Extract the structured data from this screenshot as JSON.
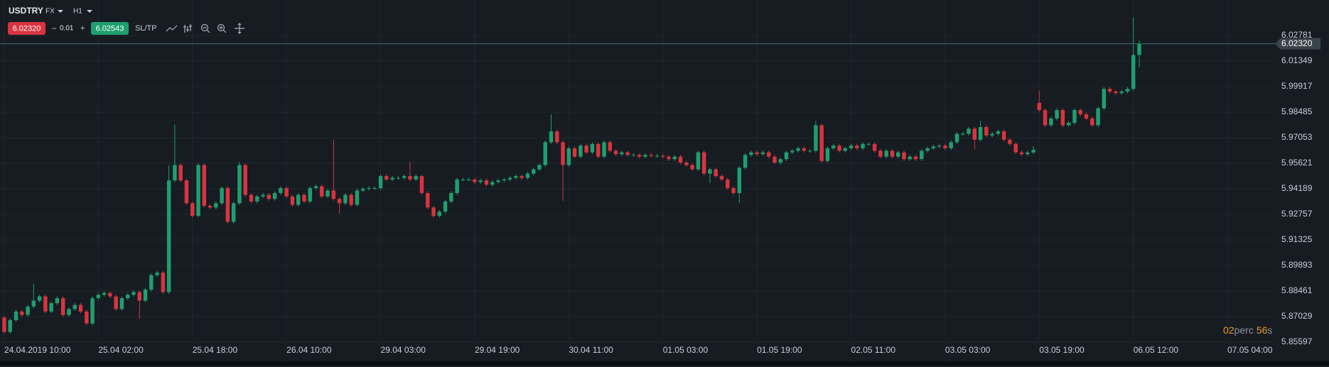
{
  "toolbar": {
    "symbol": "USDTRY",
    "market": "FX",
    "timeframe": "H1",
    "bid": "6.02320",
    "minus": "–",
    "lot": "0.01",
    "plus": "+",
    "ask": "6.02543",
    "sltp": "SL/TP"
  },
  "timer": {
    "minutes": "02",
    "minutes_unit": "perc",
    "seconds": "56",
    "seconds_unit": "s"
  },
  "chart_data": {
    "type": "candlestick",
    "up_color": "#1f9e6f",
    "down_color": "#d8343f",
    "grid": true,
    "current_price": {
      "value": 6.0232,
      "label": "6.02320"
    },
    "ylim": [
      5.846,
      6.0477
    ],
    "xlim": [
      -0.72,
      215.6
    ],
    "yticks": [
      6.02781,
      6.01349,
      5.99917,
      5.98485,
      5.97053,
      5.95621,
      5.94189,
      5.92757,
      5.91325,
      5.89893,
      5.88461,
      5.87029,
      5.85597
    ],
    "xticks": [
      {
        "value": 0,
        "label": "24.04.2019 10:00"
      },
      {
        "value": 16,
        "label": "25.04 02:00"
      },
      {
        "value": 32,
        "label": "25.04 18:00"
      },
      {
        "value": 48,
        "label": "26.04 10:00"
      },
      {
        "value": 64,
        "label": "29.04 03:00"
      },
      {
        "value": 80,
        "label": "29.04 19:00"
      },
      {
        "value": 96,
        "label": "30.04 11:00"
      },
      {
        "value": 112,
        "label": "01.05 03:00"
      },
      {
        "value": 128,
        "label": "01.05 19:00"
      },
      {
        "value": 144,
        "label": "02.05 11:00"
      },
      {
        "value": 160,
        "label": "03.05 03:00"
      },
      {
        "value": 176,
        "label": "03.05 19:00"
      },
      {
        "value": 192,
        "label": "06.05 12:00"
      },
      {
        "value": 208,
        "label": "07.05 04:00"
      }
    ],
    "ohlc": [
      [
        5.8697,
        5.8707,
        5.8607,
        5.8617
      ],
      [
        5.8617,
        5.8693,
        5.8607,
        5.8683
      ],
      [
        5.8683,
        5.8741,
        5.8673,
        5.8731
      ],
      [
        5.8731,
        5.8741,
        5.8702,
        5.8712
      ],
      [
        5.8712,
        5.8769,
        5.8702,
        5.8759
      ],
      [
        5.8759,
        5.8887,
        5.8749,
        5.8792
      ],
      [
        5.8792,
        5.8826,
        5.8782,
        5.8816
      ],
      [
        5.8816,
        5.8826,
        5.8721,
        5.8731
      ],
      [
        5.8731,
        5.8788,
        5.8721,
        5.8778
      ],
      [
        5.8778,
        5.8816,
        5.8768,
        5.8806
      ],
      [
        5.8806,
        5.8816,
        5.8702,
        5.8712
      ],
      [
        5.8712,
        5.8755,
        5.8702,
        5.8745
      ],
      [
        5.8745,
        5.8778,
        5.8735,
        5.8768
      ],
      [
        5.8768,
        5.8778,
        5.8721,
        5.8731
      ],
      [
        5.8731,
        5.8741,
        5.8654,
        5.8664
      ],
      [
        5.8664,
        5.8816,
        5.8654,
        5.8806
      ],
      [
        5.8806,
        5.8835,
        5.8796,
        5.8825
      ],
      [
        5.8825,
        5.8845,
        5.8815,
        5.8835
      ],
      [
        5.8835,
        5.8845,
        5.8806,
        5.8816
      ],
      [
        5.8816,
        5.8826,
        5.8735,
        5.8745
      ],
      [
        5.8745,
        5.8816,
        5.8735,
        5.8806
      ],
      [
        5.8806,
        5.8835,
        5.8796,
        5.8825
      ],
      [
        5.8825,
        5.885,
        5.8815,
        5.884
      ],
      [
        5.884,
        5.885,
        5.869,
        5.8792
      ],
      [
        5.8792,
        5.8864,
        5.8782,
        5.8854
      ],
      [
        5.8854,
        5.8945,
        5.8844,
        5.8935
      ],
      [
        5.8935,
        5.8959,
        5.8925,
        5.8949
      ],
      [
        5.8949,
        5.8959,
        5.883,
        5.884
      ],
      [
        5.884,
        5.9552,
        5.883,
        5.9466
      ],
      [
        5.9466,
        5.9779,
        5.9456,
        5.9552
      ],
      [
        5.9552,
        5.9562,
        5.9456,
        5.9466
      ],
      [
        5.9466,
        5.9476,
        5.9328,
        5.9338
      ],
      [
        5.9338,
        5.9348,
        5.9257,
        5.9267
      ],
      [
        5.9267,
        5.9562,
        5.9257,
        5.9552
      ],
      [
        5.9552,
        5.9562,
        5.9314,
        5.9324
      ],
      [
        5.9324,
        5.9334,
        5.9304,
        5.9314
      ],
      [
        5.9314,
        5.9348,
        5.9304,
        5.9338
      ],
      [
        5.9338,
        5.9433,
        5.9328,
        5.9423
      ],
      [
        5.9423,
        5.9433,
        5.9224,
        5.9234
      ],
      [
        5.9234,
        5.9348,
        5.9224,
        5.9338
      ],
      [
        5.9338,
        5.957,
        5.9328,
        5.9552
      ],
      [
        5.9552,
        5.9562,
        5.9375,
        5.9385
      ],
      [
        5.9385,
        5.9395,
        5.9338,
        5.9348
      ],
      [
        5.9348,
        5.9386,
        5.9338,
        5.9376
      ],
      [
        5.9376,
        5.9395,
        5.9366,
        5.9385
      ],
      [
        5.9385,
        5.9395,
        5.9352,
        5.9362
      ],
      [
        5.9362,
        5.9405,
        5.9352,
        5.9395
      ],
      [
        5.9395,
        5.9433,
        5.9385,
        5.9423
      ],
      [
        5.9423,
        5.9433,
        5.9366,
        5.9376
      ],
      [
        5.9376,
        5.9386,
        5.9319,
        5.9329
      ],
      [
        5.9329,
        5.9395,
        5.9319,
        5.9385
      ],
      [
        5.9385,
        5.9395,
        5.9338,
        5.9348
      ],
      [
        5.9348,
        5.9433,
        5.9338,
        5.9423
      ],
      [
        5.9423,
        5.9443,
        5.9413,
        5.9433
      ],
      [
        5.9433,
        5.9443,
        5.9366,
        5.9376
      ],
      [
        5.9376,
        5.9419,
        5.9366,
        5.9409
      ],
      [
        5.9409,
        5.9694,
        5.9352,
        5.9362
      ],
      [
        5.9362,
        5.9372,
        5.928,
        5.9338
      ],
      [
        5.9338,
        5.9395,
        5.9328,
        5.9385
      ],
      [
        5.9385,
        5.9395,
        5.9319,
        5.9329
      ],
      [
        5.9329,
        5.9419,
        5.9319,
        5.9409
      ],
      [
        5.9409,
        5.9429,
        5.9399,
        5.9419
      ],
      [
        5.9419,
        5.9433,
        5.9409,
        5.9423
      ],
      [
        5.9423,
        5.9433,
        5.9413,
        5.9423
      ],
      [
        5.9423,
        5.95,
        5.9413,
        5.949
      ],
      [
        5.949,
        5.95,
        5.9461,
        5.9471
      ],
      [
        5.9471,
        5.949,
        5.9461,
        5.948
      ],
      [
        5.948,
        5.949,
        5.947,
        5.948
      ],
      [
        5.948,
        5.95,
        5.947,
        5.949
      ],
      [
        5.949,
        5.957,
        5.9461,
        5.9471
      ],
      [
        5.9471,
        5.95,
        5.9461,
        5.949
      ],
      [
        5.949,
        5.95,
        5.9385,
        5.9395
      ],
      [
        5.9395,
        5.9405,
        5.9304,
        5.9314
      ],
      [
        5.9314,
        5.9324,
        5.9257,
        5.9267
      ],
      [
        5.9267,
        5.9301,
        5.9257,
        5.9291
      ],
      [
        5.9291,
        5.9358,
        5.9281,
        5.9348
      ],
      [
        5.9348,
        5.9405,
        5.9338,
        5.9395
      ],
      [
        5.9395,
        5.9481,
        5.9385,
        5.9471
      ],
      [
        5.9471,
        5.9481,
        5.9461,
        5.9471
      ],
      [
        5.9471,
        5.9481,
        5.9461,
        5.9471
      ],
      [
        5.9471,
        5.9481,
        5.9447,
        5.9457
      ],
      [
        5.9457,
        5.9476,
        5.9447,
        5.9466
      ],
      [
        5.9466,
        5.9476,
        5.9432,
        5.9442
      ],
      [
        5.9442,
        5.9467,
        5.9432,
        5.9457
      ],
      [
        5.9457,
        5.9476,
        5.9447,
        5.9466
      ],
      [
        5.9466,
        5.9481,
        5.9456,
        5.9471
      ],
      [
        5.9471,
        5.949,
        5.9461,
        5.948
      ],
      [
        5.948,
        5.95,
        5.947,
        5.949
      ],
      [
        5.949,
        5.95,
        5.947,
        5.948
      ],
      [
        5.948,
        5.9514,
        5.947,
        5.9504
      ],
      [
        5.9504,
        5.9538,
        5.9494,
        5.9528
      ],
      [
        5.9528,
        5.9562,
        5.9518,
        5.9552
      ],
      [
        5.9552,
        5.969,
        5.9542,
        5.968
      ],
      [
        5.968,
        5.9836,
        5.967,
        5.9741
      ],
      [
        5.9741,
        5.9751,
        5.967,
        5.968
      ],
      [
        5.968,
        5.969,
        5.9352,
        5.9552
      ],
      [
        5.9552,
        5.9656,
        5.9542,
        5.9646
      ],
      [
        5.9646,
        5.9656,
        5.9589,
        5.9599
      ],
      [
        5.9599,
        5.9671,
        5.9589,
        5.9661
      ],
      [
        5.9661,
        5.9671,
        5.9613,
        5.9623
      ],
      [
        5.9623,
        5.968,
        5.9613,
        5.967
      ],
      [
        5.967,
        5.968,
        5.9589,
        5.9599
      ],
      [
        5.9599,
        5.969,
        5.9589,
        5.968
      ],
      [
        5.968,
        5.969,
        5.9622,
        5.9632
      ],
      [
        5.9632,
        5.9642,
        5.9603,
        5.9613
      ],
      [
        5.9613,
        5.9633,
        5.9603,
        5.9623
      ],
      [
        5.9623,
        5.9633,
        5.9599,
        5.9609
      ],
      [
        5.9609,
        5.9619,
        5.9599,
        5.9609
      ],
      [
        5.9609,
        5.9619,
        5.9589,
        5.9599
      ],
      [
        5.9599,
        5.9619,
        5.9589,
        5.9609
      ],
      [
        5.9609,
        5.9619,
        5.9594,
        5.9604
      ],
      [
        5.9604,
        5.9614,
        5.9594,
        5.9604
      ],
      [
        5.9604,
        5.9614,
        5.9589,
        5.9599
      ],
      [
        5.9599,
        5.9609,
        5.9575,
        5.9585
      ],
      [
        5.9585,
        5.9609,
        5.9575,
        5.9599
      ],
      [
        5.9599,
        5.9609,
        5.9556,
        5.9566
      ],
      [
        5.9566,
        5.9576,
        5.9542,
        5.9552
      ],
      [
        5.9552,
        5.9562,
        5.9518,
        5.9528
      ],
      [
        5.9528,
        5.9633,
        5.9518,
        5.9623
      ],
      [
        5.9623,
        5.9633,
        5.9494,
        5.9504
      ],
      [
        5.9504,
        5.9538,
        5.945,
        5.9528
      ],
      [
        5.9528,
        5.9538,
        5.948,
        5.949
      ],
      [
        5.949,
        5.95,
        5.9461,
        5.9471
      ],
      [
        5.9471,
        5.9481,
        5.9413,
        5.9423
      ],
      [
        5.9423,
        5.9433,
        5.9385,
        5.9395
      ],
      [
        5.9395,
        5.9547,
        5.934,
        5.9537
      ],
      [
        5.9537,
        5.9619,
        5.9527,
        5.9609
      ],
      [
        5.9609,
        5.9633,
        5.9599,
        5.9623
      ],
      [
        5.9623,
        5.9633,
        5.9603,
        5.9613
      ],
      [
        5.9613,
        5.9633,
        5.9603,
        5.9623
      ],
      [
        5.9623,
        5.9633,
        5.9589,
        5.9599
      ],
      [
        5.9599,
        5.9609,
        5.9556,
        5.9566
      ],
      [
        5.9566,
        5.9595,
        5.9556,
        5.9585
      ],
      [
        5.9585,
        5.9633,
        5.9575,
        5.9623
      ],
      [
        5.9623,
        5.9642,
        5.9613,
        5.9632
      ],
      [
        5.9632,
        5.9656,
        5.9622,
        5.9646
      ],
      [
        5.9646,
        5.9656,
        5.9622,
        5.9632
      ],
      [
        5.9632,
        5.9642,
        5.9622,
        5.9632
      ],
      [
        5.9632,
        5.98,
        5.9622,
        5.9775
      ],
      [
        5.9775,
        5.9785,
        5.9565,
        5.9575
      ],
      [
        5.9575,
        5.9656,
        5.9565,
        5.9646
      ],
      [
        5.9646,
        5.9671,
        5.9636,
        5.9661
      ],
      [
        5.9661,
        5.9671,
        5.9622,
        5.9632
      ],
      [
        5.9632,
        5.9656,
        5.9622,
        5.9646
      ],
      [
        5.9646,
        5.9671,
        5.9636,
        5.9661
      ],
      [
        5.9661,
        5.9671,
        5.9636,
        5.9646
      ],
      [
        5.9646,
        5.968,
        5.9636,
        5.967
      ],
      [
        5.967,
        5.968,
        5.966,
        5.967
      ],
      [
        5.967,
        5.968,
        5.9622,
        5.9632
      ],
      [
        5.9632,
        5.9642,
        5.9589,
        5.9599
      ],
      [
        5.9599,
        5.9642,
        5.9589,
        5.9632
      ],
      [
        5.9632,
        5.9642,
        5.9589,
        5.9599
      ],
      [
        5.9599,
        5.9633,
        5.9589,
        5.9623
      ],
      [
        5.9623,
        5.9633,
        5.9575,
        5.9585
      ],
      [
        5.9585,
        5.9609,
        5.9575,
        5.9599
      ],
      [
        5.9599,
        5.9609,
        5.9575,
        5.9585
      ],
      [
        5.9585,
        5.9642,
        5.9575,
        5.9632
      ],
      [
        5.9632,
        5.9656,
        5.9622,
        5.9646
      ],
      [
        5.9646,
        5.9666,
        5.9636,
        5.9656
      ],
      [
        5.9656,
        5.9671,
        5.9646,
        5.9661
      ],
      [
        5.9661,
        5.9671,
        5.9636,
        5.9646
      ],
      [
        5.9646,
        5.969,
        5.9636,
        5.968
      ],
      [
        5.968,
        5.9737,
        5.967,
        5.9727
      ],
      [
        5.9727,
        5.9737,
        5.9717,
        5.9727
      ],
      [
        5.9727,
        5.9766,
        5.9717,
        5.9756
      ],
      [
        5.9756,
        5.9766,
        5.964,
        5.9694
      ],
      [
        5.9694,
        5.98,
        5.9684,
        5.9765
      ],
      [
        5.9765,
        5.9775,
        5.9708,
        5.9718
      ],
      [
        5.9718,
        5.9737,
        5.9708,
        5.9727
      ],
      [
        5.9727,
        5.9751,
        5.9717,
        5.9741
      ],
      [
        5.9741,
        5.9751,
        5.9684,
        5.9694
      ],
      [
        5.9694,
        5.9704,
        5.966,
        5.967
      ],
      [
        5.967,
        5.968,
        5.9613,
        5.9623
      ],
      [
        5.9623,
        5.9633,
        5.9603,
        5.9613
      ],
      [
        5.9613,
        5.9633,
        5.9603,
        5.9623
      ],
      [
        5.9623,
        5.966,
        5.9613,
        5.9637
      ],
      [
        5.99,
        5.9969,
        5.985,
        5.986
      ],
      [
        5.986,
        5.987,
        5.9765,
        5.9775
      ],
      [
        5.9775,
        5.9823,
        5.9765,
        5.9813
      ],
      [
        5.9813,
        5.987,
        5.9803,
        5.986
      ],
      [
        5.986,
        5.987,
        5.9765,
        5.9775
      ],
      [
        5.9775,
        5.9799,
        5.9765,
        5.9789
      ],
      [
        5.9789,
        5.987,
        5.9779,
        5.986
      ],
      [
        5.986,
        5.987,
        5.9826,
        5.9836
      ],
      [
        5.9836,
        5.9846,
        5.9803,
        5.9813
      ],
      [
        5.9813,
        5.9823,
        5.9765,
        5.9775
      ],
      [
        5.9775,
        5.988,
        5.9765,
        5.987
      ],
      [
        5.987,
        5.9989,
        5.986,
        5.9979
      ],
      [
        5.9979,
        5.9989,
        5.9954,
        5.9964
      ],
      [
        5.9964,
        5.9974,
        5.9945,
        5.9955
      ],
      [
        5.9955,
        5.9974,
        5.9945,
        5.9964
      ],
      [
        5.9964,
        5.9989,
        5.9954,
        5.9979
      ],
      [
        5.9979,
        6.0382,
        5.9969,
        6.0169
      ],
      [
        6.0169,
        6.025,
        6.01,
        6.0232
      ]
    ]
  }
}
